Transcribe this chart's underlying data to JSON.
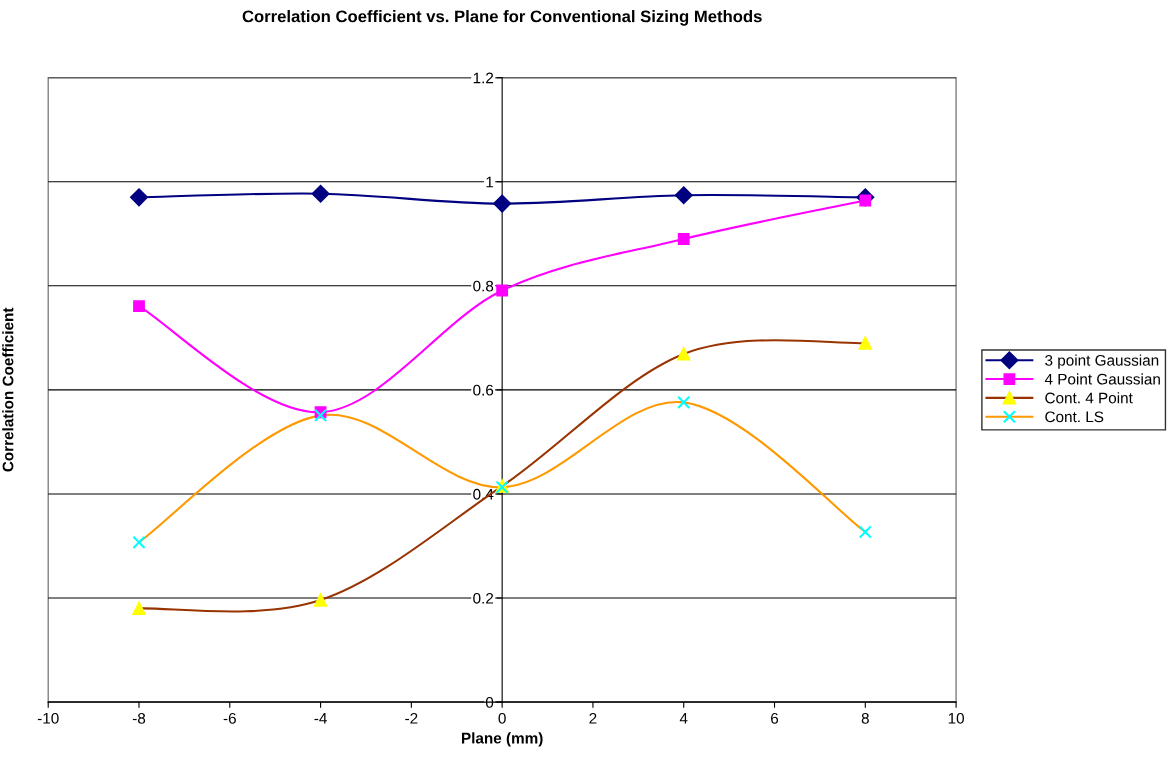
{
  "chart_data": {
    "type": "line",
    "title": "Correlation Coefficient vs. Plane for Conventional Sizing Methods",
    "xlabel": "Plane (mm)",
    "ylabel": "Correlation Coefficient",
    "x": [
      -8,
      -4,
      0,
      4,
      8
    ],
    "series": [
      {
        "name": "3 point Gaussian",
        "color": "#000080",
        "colors": [
          "#000080",
          "#000080",
          "#000080",
          "#000080",
          "#000080"
        ],
        "marker": "diamond",
        "values": [
          0.97,
          0.977,
          0.958,
          0.974,
          0.97
        ]
      },
      {
        "name": "4 Point Gaussian",
        "color": "#ff00ff",
        "colors": [
          "#ff00ff",
          "#ff00ff",
          "#ff00ff",
          "#ff00ff",
          "#ff00ff"
        ],
        "marker": "square",
        "values": [
          0.761,
          0.557,
          0.791,
          0.89,
          0.964
        ]
      },
      {
        "name": "Cont. 4 Point",
        "color": "#993300",
        "colors": [
          "#ffff00",
          "#ffff00",
          "#ffff00",
          "#ffff00",
          "#ffff00"
        ],
        "marker": "triangle",
        "values": [
          0.18,
          0.196,
          0.415,
          0.669,
          0.69
        ]
      },
      {
        "name": "Cont. LS",
        "color": "#ff9900",
        "colors": [
          "#00ffff",
          "#00ffff",
          "#00ffff",
          "#00ffff",
          "#00ffff"
        ],
        "marker": "cross",
        "values": [
          0.307,
          0.551,
          0.413,
          0.576,
          0.327
        ]
      }
    ],
    "xlim": [
      -10,
      10
    ],
    "xticks": [
      -10,
      -8,
      -6,
      -4,
      -2,
      0,
      2,
      4,
      6,
      8,
      10
    ],
    "ylim": [
      0,
      1.2
    ],
    "yticks": [
      0,
      0.2,
      0.4,
      0.6,
      0.8,
      1,
      1.2
    ],
    "grid": "y",
    "legend": "right"
  }
}
